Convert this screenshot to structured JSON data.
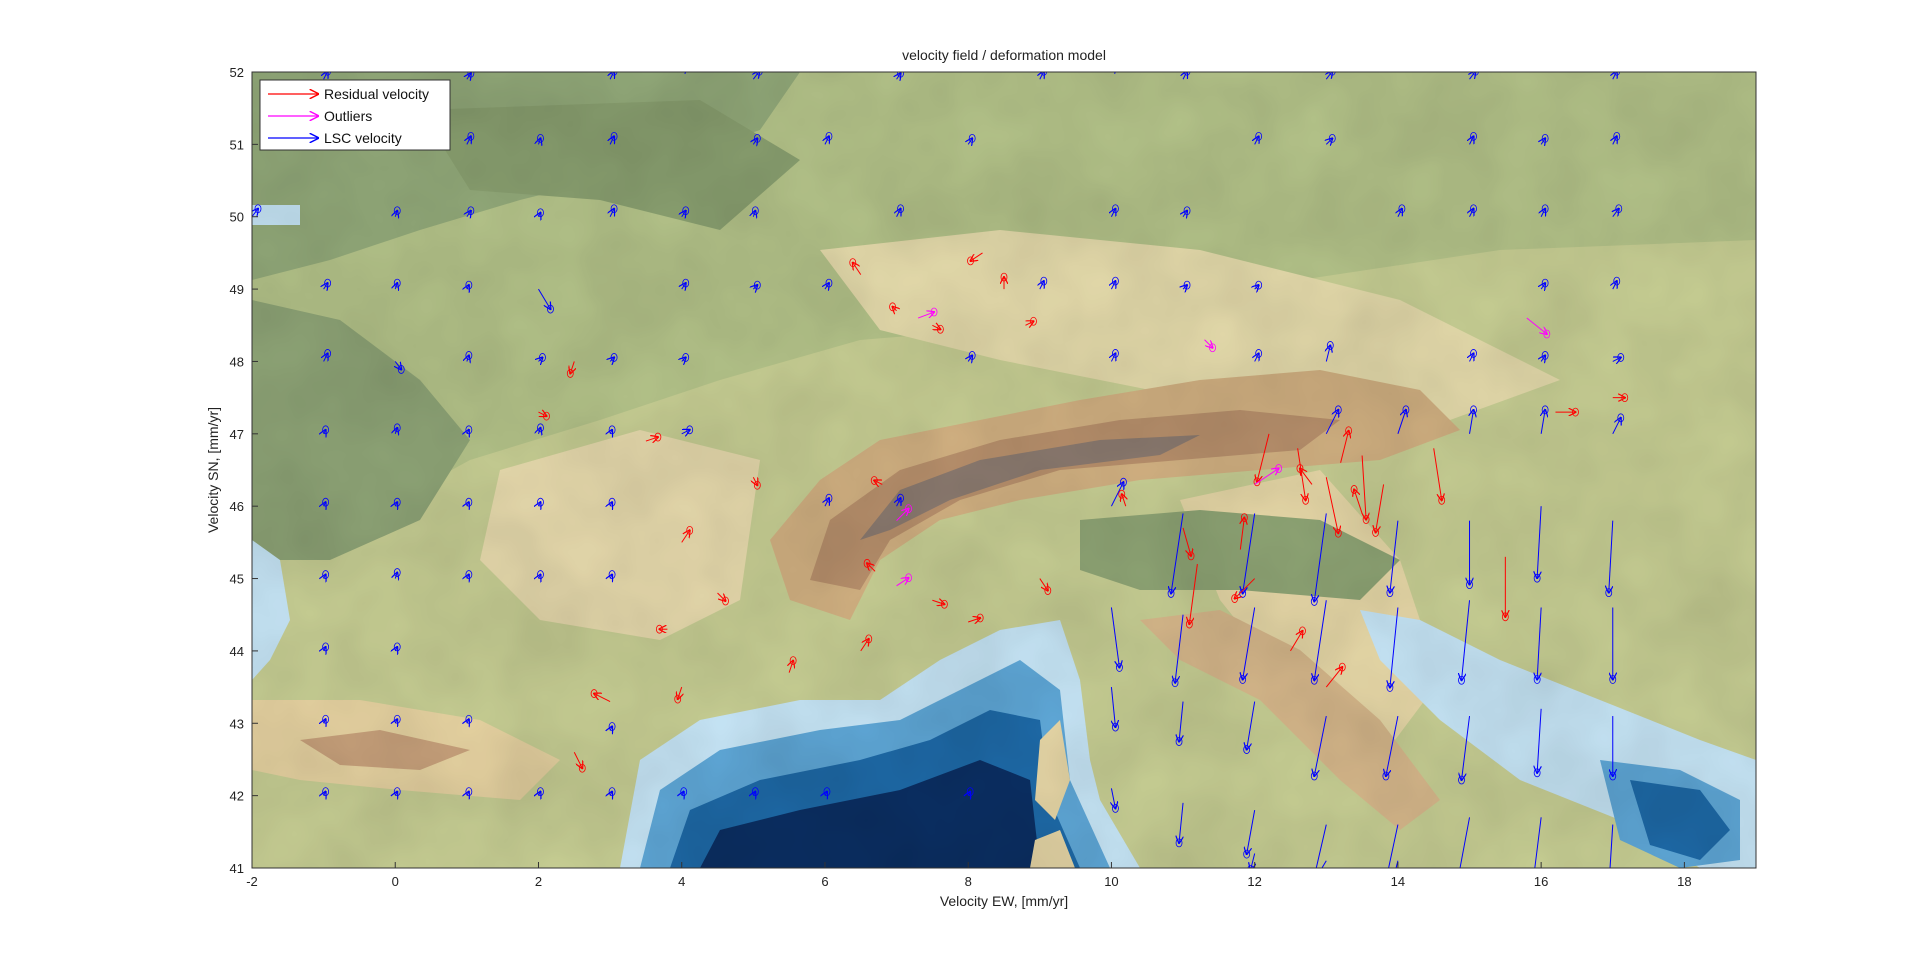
{
  "chart_data": {
    "type": "scatter",
    "title": "velocity field / deformation model",
    "xlabel": "Velocity EW, [mm/yr]",
    "ylabel": "Velocity SN, [mm/yr]",
    "xlim": [
      -2,
      19
    ],
    "ylim": [
      41,
      52
    ],
    "xticks": [
      -2,
      0,
      2,
      4,
      6,
      8,
      10,
      12,
      14,
      16,
      18
    ],
    "yticks": [
      41,
      42,
      43,
      44,
      45,
      46,
      47,
      48,
      49,
      50,
      51,
      52
    ],
    "background": "shaded-relief topography map with sea bathymetry",
    "legend": {
      "placement": "top-left",
      "entries": [
        {
          "label": "Residual velocity",
          "color": "#ff0000"
        },
        {
          "label": "Outliers",
          "color": "#ff00ff"
        },
        {
          "label": "LSC velocity",
          "color": "#0000ff"
        }
      ]
    },
    "colors": {
      "residual": "#ff0000",
      "outlier": "#ff00ff",
      "lsc": "#0000ff",
      "sea_deep": "#0b2f63",
      "sea_mid": "#1e6aa8",
      "sea_shallow": "#c7e6f7",
      "lowland": "#8fa575",
      "midland": "#c8cf94",
      "upland": "#e9dcae",
      "mountain": "#c9a27c",
      "peak": "#8a7a70"
    },
    "series": [
      {
        "name": "LSC velocity",
        "points": [
          [
            -2,
            52,
            0,
            0.2
          ],
          [
            -1,
            51.9,
            0.1,
            0.2
          ],
          [
            0,
            52,
            0.1,
            0.2
          ],
          [
            1,
            51.9,
            0.1,
            0.15
          ],
          [
            2,
            52,
            0.1,
            0.2
          ],
          [
            3,
            51.9,
            0.1,
            0.2
          ],
          [
            4,
            52,
            0.1,
            0.15
          ],
          [
            5,
            51.9,
            0.15,
            0.2
          ],
          [
            6,
            52,
            0.1,
            0.2
          ],
          [
            7,
            51.9,
            0.1,
            0.15
          ],
          [
            8,
            52,
            0.1,
            0.2
          ],
          [
            9,
            51.9,
            0.1,
            0.2
          ],
          [
            10,
            52,
            0.1,
            0.15
          ],
          [
            11,
            51.9,
            0.1,
            0.2
          ],
          [
            12,
            52,
            0.15,
            0.2
          ],
          [
            13,
            51.9,
            0.15,
            0.2
          ],
          [
            14,
            52,
            0.1,
            0.2
          ],
          [
            15,
            51.9,
            0.15,
            0.2
          ],
          [
            16,
            52,
            0.1,
            0.2
          ],
          [
            17,
            51.9,
            0.1,
            0.2
          ],
          [
            -1,
            51,
            0.1,
            0.15
          ],
          [
            1,
            51,
            0.1,
            0.2
          ],
          [
            2,
            51,
            0.05,
            0.15
          ],
          [
            3,
            51,
            0.1,
            0.2
          ],
          [
            5,
            51,
            0.1,
            0.15
          ],
          [
            6,
            51,
            0.1,
            0.2
          ],
          [
            8,
            51,
            0.1,
            0.15
          ],
          [
            12,
            51,
            0.1,
            0.2
          ],
          [
            13,
            51,
            0.15,
            0.15
          ],
          [
            15,
            51,
            0.1,
            0.2
          ],
          [
            16,
            51,
            0.1,
            0.15
          ],
          [
            17,
            51,
            0.1,
            0.2
          ],
          [
            -2,
            50,
            0.15,
            0.2
          ],
          [
            0,
            50,
            0.05,
            0.15
          ],
          [
            1,
            50,
            0.1,
            0.15
          ],
          [
            2,
            50,
            0.05,
            0.1
          ],
          [
            3,
            50,
            0.1,
            0.2
          ],
          [
            4,
            50,
            0.1,
            0.15
          ],
          [
            5,
            50,
            0.05,
            0.15
          ],
          [
            7,
            50,
            0.1,
            0.2
          ],
          [
            10,
            50,
            0.1,
            0.2
          ],
          [
            11,
            50,
            0.1,
            0.15
          ],
          [
            14,
            50,
            0.1,
            0.2
          ],
          [
            15,
            50,
            0.1,
            0.2
          ],
          [
            16,
            50,
            0.1,
            0.2
          ],
          [
            17,
            50,
            0.15,
            0.2
          ],
          [
            -1,
            49,
            0.1,
            0.15
          ],
          [
            0,
            49,
            0.05,
            0.15
          ],
          [
            1,
            49,
            0.05,
            0.1
          ],
          [
            2,
            49,
            0.3,
            -0.5
          ],
          [
            4,
            49,
            0.1,
            0.15
          ],
          [
            5,
            49,
            0.1,
            0.1
          ],
          [
            6,
            49,
            0.1,
            0.15
          ],
          [
            9,
            49,
            0.1,
            0.2
          ],
          [
            10,
            49,
            0.1,
            0.2
          ],
          [
            11,
            49,
            0.1,
            0.1
          ],
          [
            12,
            49,
            0.1,
            0.1
          ],
          [
            16,
            49,
            0.1,
            0.15
          ],
          [
            17,
            49,
            0.1,
            0.2
          ],
          [
            -1,
            48,
            0.1,
            0.2
          ],
          [
            0,
            48,
            0.15,
            -0.2
          ],
          [
            1,
            48,
            0.05,
            0.15
          ],
          [
            2,
            48,
            0.1,
            0.1
          ],
          [
            3,
            48,
            0.1,
            0.1
          ],
          [
            4,
            48,
            0.1,
            0.1
          ],
          [
            8,
            48,
            0.1,
            0.15
          ],
          [
            10,
            48,
            0.1,
            0.2
          ],
          [
            12,
            48,
            0.1,
            0.2
          ],
          [
            13,
            48,
            0.1,
            0.4
          ],
          [
            15,
            48,
            0.1,
            0.2
          ],
          [
            16,
            48,
            0.1,
            0.15
          ],
          [
            17,
            48,
            0.2,
            0.1
          ],
          [
            -1,
            47,
            0.05,
            0.1
          ],
          [
            0,
            47,
            0.05,
            0.15
          ],
          [
            1,
            47,
            0.05,
            0.1
          ],
          [
            2,
            47,
            0.05,
            0.15
          ],
          [
            3,
            47,
            0.05,
            0.1
          ],
          [
            4,
            47,
            0.2,
            0.1
          ],
          [
            13,
            47,
            0.3,
            0.6
          ],
          [
            14,
            47,
            0.2,
            0.6
          ],
          [
            15,
            47,
            0.1,
            0.6
          ],
          [
            16,
            47,
            0.1,
            0.6
          ],
          [
            17,
            47,
            0.2,
            0.4
          ],
          [
            -1,
            46,
            0.05,
            0.1
          ],
          [
            0,
            46,
            0.05,
            0.1
          ],
          [
            1,
            46,
            0.05,
            0.1
          ],
          [
            2,
            46,
            0.05,
            0.1
          ],
          [
            3,
            46,
            0.05,
            0.1
          ],
          [
            6,
            46,
            0.1,
            0.2
          ],
          [
            7,
            46,
            0.1,
            0.2
          ],
          [
            10,
            46,
            0.3,
            0.6
          ],
          [
            11,
            45.9,
            -0.3,
            -2.0
          ],
          [
            12,
            45.9,
            -0.3,
            -2.0
          ],
          [
            13,
            45.9,
            -0.3,
            -2.2
          ],
          [
            14,
            45.8,
            -0.2,
            -1.8
          ],
          [
            15,
            45.8,
            0,
            -1.6
          ],
          [
            16,
            46,
            -0.1,
            -1.8
          ],
          [
            17,
            45.8,
            -0.1,
            -1.8
          ],
          [
            -1,
            45,
            0.05,
            0.1
          ],
          [
            0,
            45,
            0.05,
            0.15
          ],
          [
            1,
            45,
            0.05,
            0.1
          ],
          [
            2,
            45,
            0.05,
            0.1
          ],
          [
            3,
            45,
            0.05,
            0.1
          ],
          [
            10,
            44.6,
            0.2,
            -1.5
          ],
          [
            11,
            44.5,
            -0.2,
            -1.7
          ],
          [
            12,
            44.6,
            -0.3,
            -1.8
          ],
          [
            13,
            44.7,
            -0.3,
            -2.0
          ],
          [
            14,
            44.6,
            -0.2,
            -2.0
          ],
          [
            15,
            44.7,
            -0.2,
            -2.0
          ],
          [
            16,
            44.6,
            -0.1,
            -1.8
          ],
          [
            17,
            44.6,
            0,
            -1.8
          ],
          [
            -1,
            44,
            0.05,
            0.1
          ],
          [
            0,
            44,
            0.05,
            0.1
          ],
          [
            10,
            43.5,
            0.1,
            -1.0
          ],
          [
            11,
            43.3,
            -0.1,
            -1.0
          ],
          [
            12,
            43.3,
            -0.2,
            -1.2
          ],
          [
            13,
            43.1,
            -0.3,
            -1.5
          ],
          [
            14,
            43.1,
            -0.3,
            -1.5
          ],
          [
            15,
            43.1,
            -0.2,
            -1.6
          ],
          [
            16,
            43.2,
            -0.1,
            -1.6
          ],
          [
            17,
            43.1,
            0,
            -1.5
          ],
          [
            -1,
            43,
            0.05,
            0.1
          ],
          [
            0,
            43,
            0.05,
            0.1
          ],
          [
            1,
            43,
            0.05,
            0.1
          ],
          [
            3,
            42.9,
            0.05,
            0.1
          ],
          [
            10,
            42.1,
            0.1,
            -0.5
          ],
          [
            11,
            41.9,
            -0.1,
            -1.0
          ],
          [
            12,
            41.8,
            -0.2,
            -1.1
          ],
          [
            13,
            41.6,
            -0.3,
            -1.3
          ],
          [
            14,
            41.6,
            -0.3,
            -1.4
          ],
          [
            15,
            41.7,
            -0.3,
            -1.6
          ],
          [
            16,
            41.7,
            -0.2,
            -1.6
          ],
          [
            17,
            41.6,
            -0.1,
            -1.6
          ],
          [
            -1,
            42,
            0.05,
            0.1
          ],
          [
            0,
            42,
            0.05,
            0.1
          ],
          [
            1,
            42,
            0.05,
            0.1
          ],
          [
            2,
            42,
            0.05,
            0.1
          ],
          [
            3,
            42,
            0.05,
            0.1
          ],
          [
            4,
            42,
            0.05,
            0.1
          ],
          [
            5,
            42,
            0.05,
            0.1
          ],
          [
            6,
            42,
            0.05,
            0.1
          ],
          [
            8,
            42,
            0.05,
            0.1
          ],
          [
            12,
            41.2,
            -0.1,
            -0.4
          ],
          [
            13,
            41.1,
            -0.3,
            -0.5
          ],
          [
            14,
            41.1,
            -0.2,
            -0.8
          ]
        ]
      },
      {
        "name": "Residual velocity",
        "points": [
          [
            2.5,
            48,
            -0.1,
            -0.3
          ],
          [
            2,
            47.3,
            0.2,
            -0.1
          ],
          [
            3.5,
            46.9,
            0.3,
            0.1
          ],
          [
            4,
            45.5,
            0.2,
            0.3
          ],
          [
            5,
            46.4,
            0.1,
            -0.2
          ],
          [
            6.7,
            45.1,
            -0.2,
            0.2
          ],
          [
            7.5,
            44.7,
            0.3,
            -0.1
          ],
          [
            6.5,
            44,
            0.2,
            0.3
          ],
          [
            5.5,
            43.7,
            0.1,
            0.3
          ],
          [
            4,
            43.5,
            -0.1,
            -0.3
          ],
          [
            3,
            43.3,
            -0.4,
            0.2
          ],
          [
            2.5,
            42.6,
            0.2,
            -0.4
          ],
          [
            6.5,
            49.2,
            -0.2,
            0.3
          ],
          [
            8.8,
            48.5,
            0.2,
            0.1
          ],
          [
            8.2,
            49.5,
            -0.3,
            -0.2
          ],
          [
            8.5,
            49,
            0,
            0.3
          ],
          [
            7.5,
            48.5,
            0.2,
            -0.1
          ],
          [
            7,
            48.7,
            -0.1,
            0.1
          ],
          [
            10.2,
            46,
            -0.1,
            0.3
          ],
          [
            11,
            45.7,
            0.2,
            -0.7
          ],
          [
            11.2,
            45.2,
            -0.2,
            -1.5
          ],
          [
            12.2,
            47,
            -0.3,
            -1.2
          ],
          [
            12.6,
            46.8,
            0.2,
            -1.3
          ],
          [
            13,
            46.4,
            0.3,
            -1.4
          ],
          [
            13.5,
            46.7,
            0.1,
            -1.6
          ],
          [
            13.8,
            46.3,
            -0.2,
            -1.2
          ],
          [
            14.5,
            46.8,
            0.2,
            -1.3
          ],
          [
            15.5,
            45.3,
            0,
            -1.5
          ],
          [
            12.8,
            46.3,
            -0.3,
            0.4
          ],
          [
            13.5,
            45.9,
            -0.2,
            0.6
          ],
          [
            13.2,
            46.6,
            0.2,
            0.8
          ],
          [
            12.5,
            44,
            0.3,
            0.5
          ],
          [
            13,
            43.5,
            0.4,
            0.5
          ],
          [
            12,
            45,
            -0.5,
            -0.5
          ],
          [
            11.8,
            45.4,
            0.1,
            0.8
          ],
          [
            16.2,
            47.3,
            0.5,
            0
          ],
          [
            17,
            47.5,
            0.3,
            0
          ],
          [
            9,
            45,
            0.2,
            -0.3
          ],
          [
            8,
            44.4,
            0.3,
            0.1
          ],
          [
            3.8,
            44.3,
            -0.2,
            0
          ],
          [
            6.8,
            46.3,
            -0.2,
            0.1
          ],
          [
            4.5,
            44.8,
            0.2,
            -0.2
          ]
        ]
      },
      {
        "name": "Outliers",
        "points": [
          [
            7.3,
            48.6,
            0.4,
            0.15
          ],
          [
            7.0,
            45.8,
            0.3,
            0.3
          ],
          [
            7.0,
            44.9,
            0.3,
            0.2
          ],
          [
            12.0,
            46.3,
            0.6,
            0.4
          ],
          [
            15.8,
            48.6,
            0.5,
            -0.4
          ],
          [
            11.3,
            48.3,
            0.2,
            -0.2
          ]
        ]
      }
    ]
  }
}
